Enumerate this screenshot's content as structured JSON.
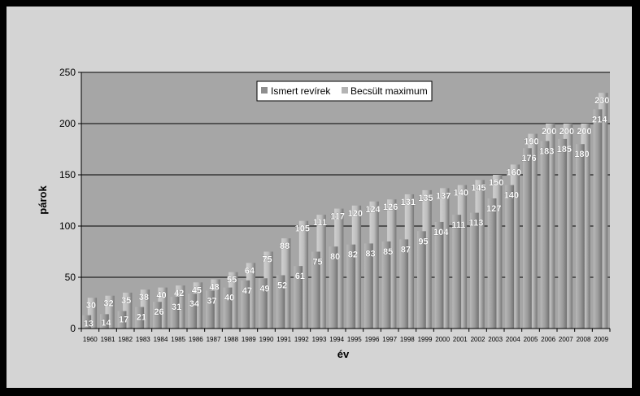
{
  "chart_data": {
    "type": "bar",
    "categories": [
      "1960",
      "1981",
      "1982",
      "1983",
      "1984",
      "1985",
      "1986",
      "1987",
      "1988",
      "1989",
      "1990",
      "1991",
      "1992",
      "1993",
      "1994",
      "1995",
      "1996",
      "1997",
      "1998",
      "1999",
      "2000",
      "2001",
      "2002",
      "2003",
      "2004",
      "2005",
      "2006",
      "2007",
      "2008",
      "2009"
    ],
    "series": [
      {
        "name": "Ismert revírek",
        "values": [
          13,
          14,
          17,
          21,
          26,
          31,
          34,
          37,
          40,
          47,
          49,
          52,
          61,
          75,
          80,
          82,
          83,
          85,
          87,
          95,
          104,
          111,
          113,
          127,
          140,
          176,
          183,
          185,
          180,
          214
        ]
      },
      {
        "name": "Becsült maximum",
        "values": [
          30,
          32,
          35,
          38,
          40,
          42,
          45,
          48,
          55,
          64,
          75,
          88,
          105,
          111,
          117,
          120,
          124,
          126,
          131,
          135,
          137,
          140,
          145,
          150,
          160,
          190,
          200,
          200,
          200,
          230
        ]
      }
    ],
    "xlabel": "év",
    "ylabel": "párok",
    "ylim": [
      0,
      250
    ],
    "yticks": [
      0,
      50,
      100,
      150,
      200,
      250
    ],
    "grid": true,
    "legend": "top-center",
    "colors": {
      "series1": "#8e8e8e",
      "series2": "#b4b4b4",
      "plot_bg": "#a6a6a6",
      "frame_bg": "#d4d4d4"
    }
  }
}
